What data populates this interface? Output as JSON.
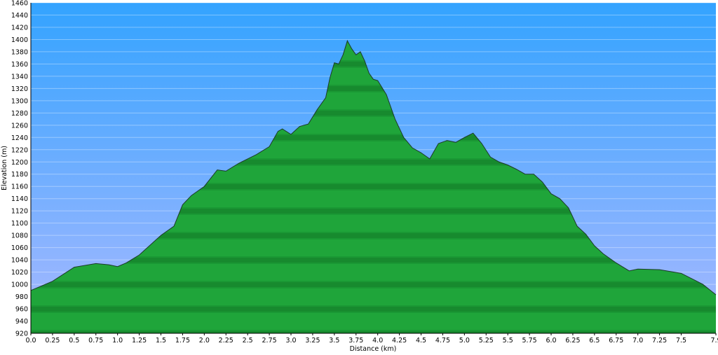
{
  "chart_data": {
    "type": "area",
    "x_label": "Distance   (km)",
    "y_label": "Elevation (m)",
    "x": [
      0,
      0.25,
      0.5,
      0.75,
      0.9,
      1.0,
      1.1,
      1.25,
      1.5,
      1.65,
      1.75,
      1.85,
      2.0,
      2.15,
      2.25,
      2.4,
      2.5,
      2.6,
      2.75,
      2.85,
      2.9,
      3.0,
      3.1,
      3.2,
      3.3,
      3.4,
      3.45,
      3.5,
      3.55,
      3.6,
      3.65,
      3.7,
      3.75,
      3.8,
      3.85,
      3.9,
      3.95,
      4.0,
      4.1,
      4.2,
      4.3,
      4.4,
      4.5,
      4.6,
      4.7,
      4.8,
      4.9,
      5.0,
      5.1,
      5.2,
      5.3,
      5.4,
      5.5,
      5.6,
      5.7,
      5.8,
      5.9,
      6.0,
      6.1,
      6.2,
      6.3,
      6.4,
      6.5,
      6.6,
      6.75,
      6.9,
      7.0,
      7.25,
      7.5,
      7.75,
      7.9
    ],
    "values": [
      990,
      1005,
      1028,
      1034,
      1032,
      1029,
      1035,
      1048,
      1080,
      1095,
      1130,
      1145,
      1160,
      1187,
      1185,
      1198,
      1205,
      1212,
      1225,
      1250,
      1254,
      1245,
      1258,
      1262,
      1285,
      1305,
      1338,
      1362,
      1360,
      1375,
      1398,
      1385,
      1375,
      1380,
      1365,
      1345,
      1335,
      1333,
      1310,
      1270,
      1240,
      1223,
      1215,
      1205,
      1230,
      1235,
      1232,
      1240,
      1247,
      1230,
      1208,
      1200,
      1195,
      1188,
      1180,
      1180,
      1167,
      1148,
      1140,
      1125,
      1095,
      1082,
      1063,
      1050,
      1035,
      1022,
      1025,
      1024,
      1018,
      1000,
      983
    ],
    "color": "#1fa53a",
    "xlim": [
      0,
      7.9
    ],
    "xticks": [
      {
        "value": 0,
        "label": "0.0"
      },
      0.25,
      0.5,
      0.75,
      {
        "value": 1,
        "label": "1.0"
      },
      1.25,
      1.5,
      1.75,
      {
        "value": 2,
        "label": "2.0"
      },
      2.25,
      2.5,
      2.75,
      {
        "value": 3,
        "label": "3.0"
      },
      3.25,
      3.5,
      3.75,
      {
        "value": 4,
        "label": "4.0"
      },
      4.25,
      4.5,
      4.75,
      {
        "value": 5,
        "label": "5.0"
      },
      5.25,
      5.5,
      5.75,
      {
        "value": 6,
        "label": "6.0"
      },
      6.25,
      6.5,
      6.75,
      {
        "value": 7,
        "label": "7.0"
      },
      7.25,
      7.5,
      7.9
    ],
    "ylim": [
      920,
      1460
    ],
    "yticks": [
      920,
      940,
      960,
      980,
      1000,
      1020,
      1040,
      1060,
      1080,
      1100,
      1120,
      1140,
      1160,
      1180,
      1200,
      1220,
      1240,
      1260,
      1280,
      1300,
      1320,
      1340,
      1360,
      1380,
      1400,
      1420,
      1440,
      1460
    ],
    "grid": true
  }
}
